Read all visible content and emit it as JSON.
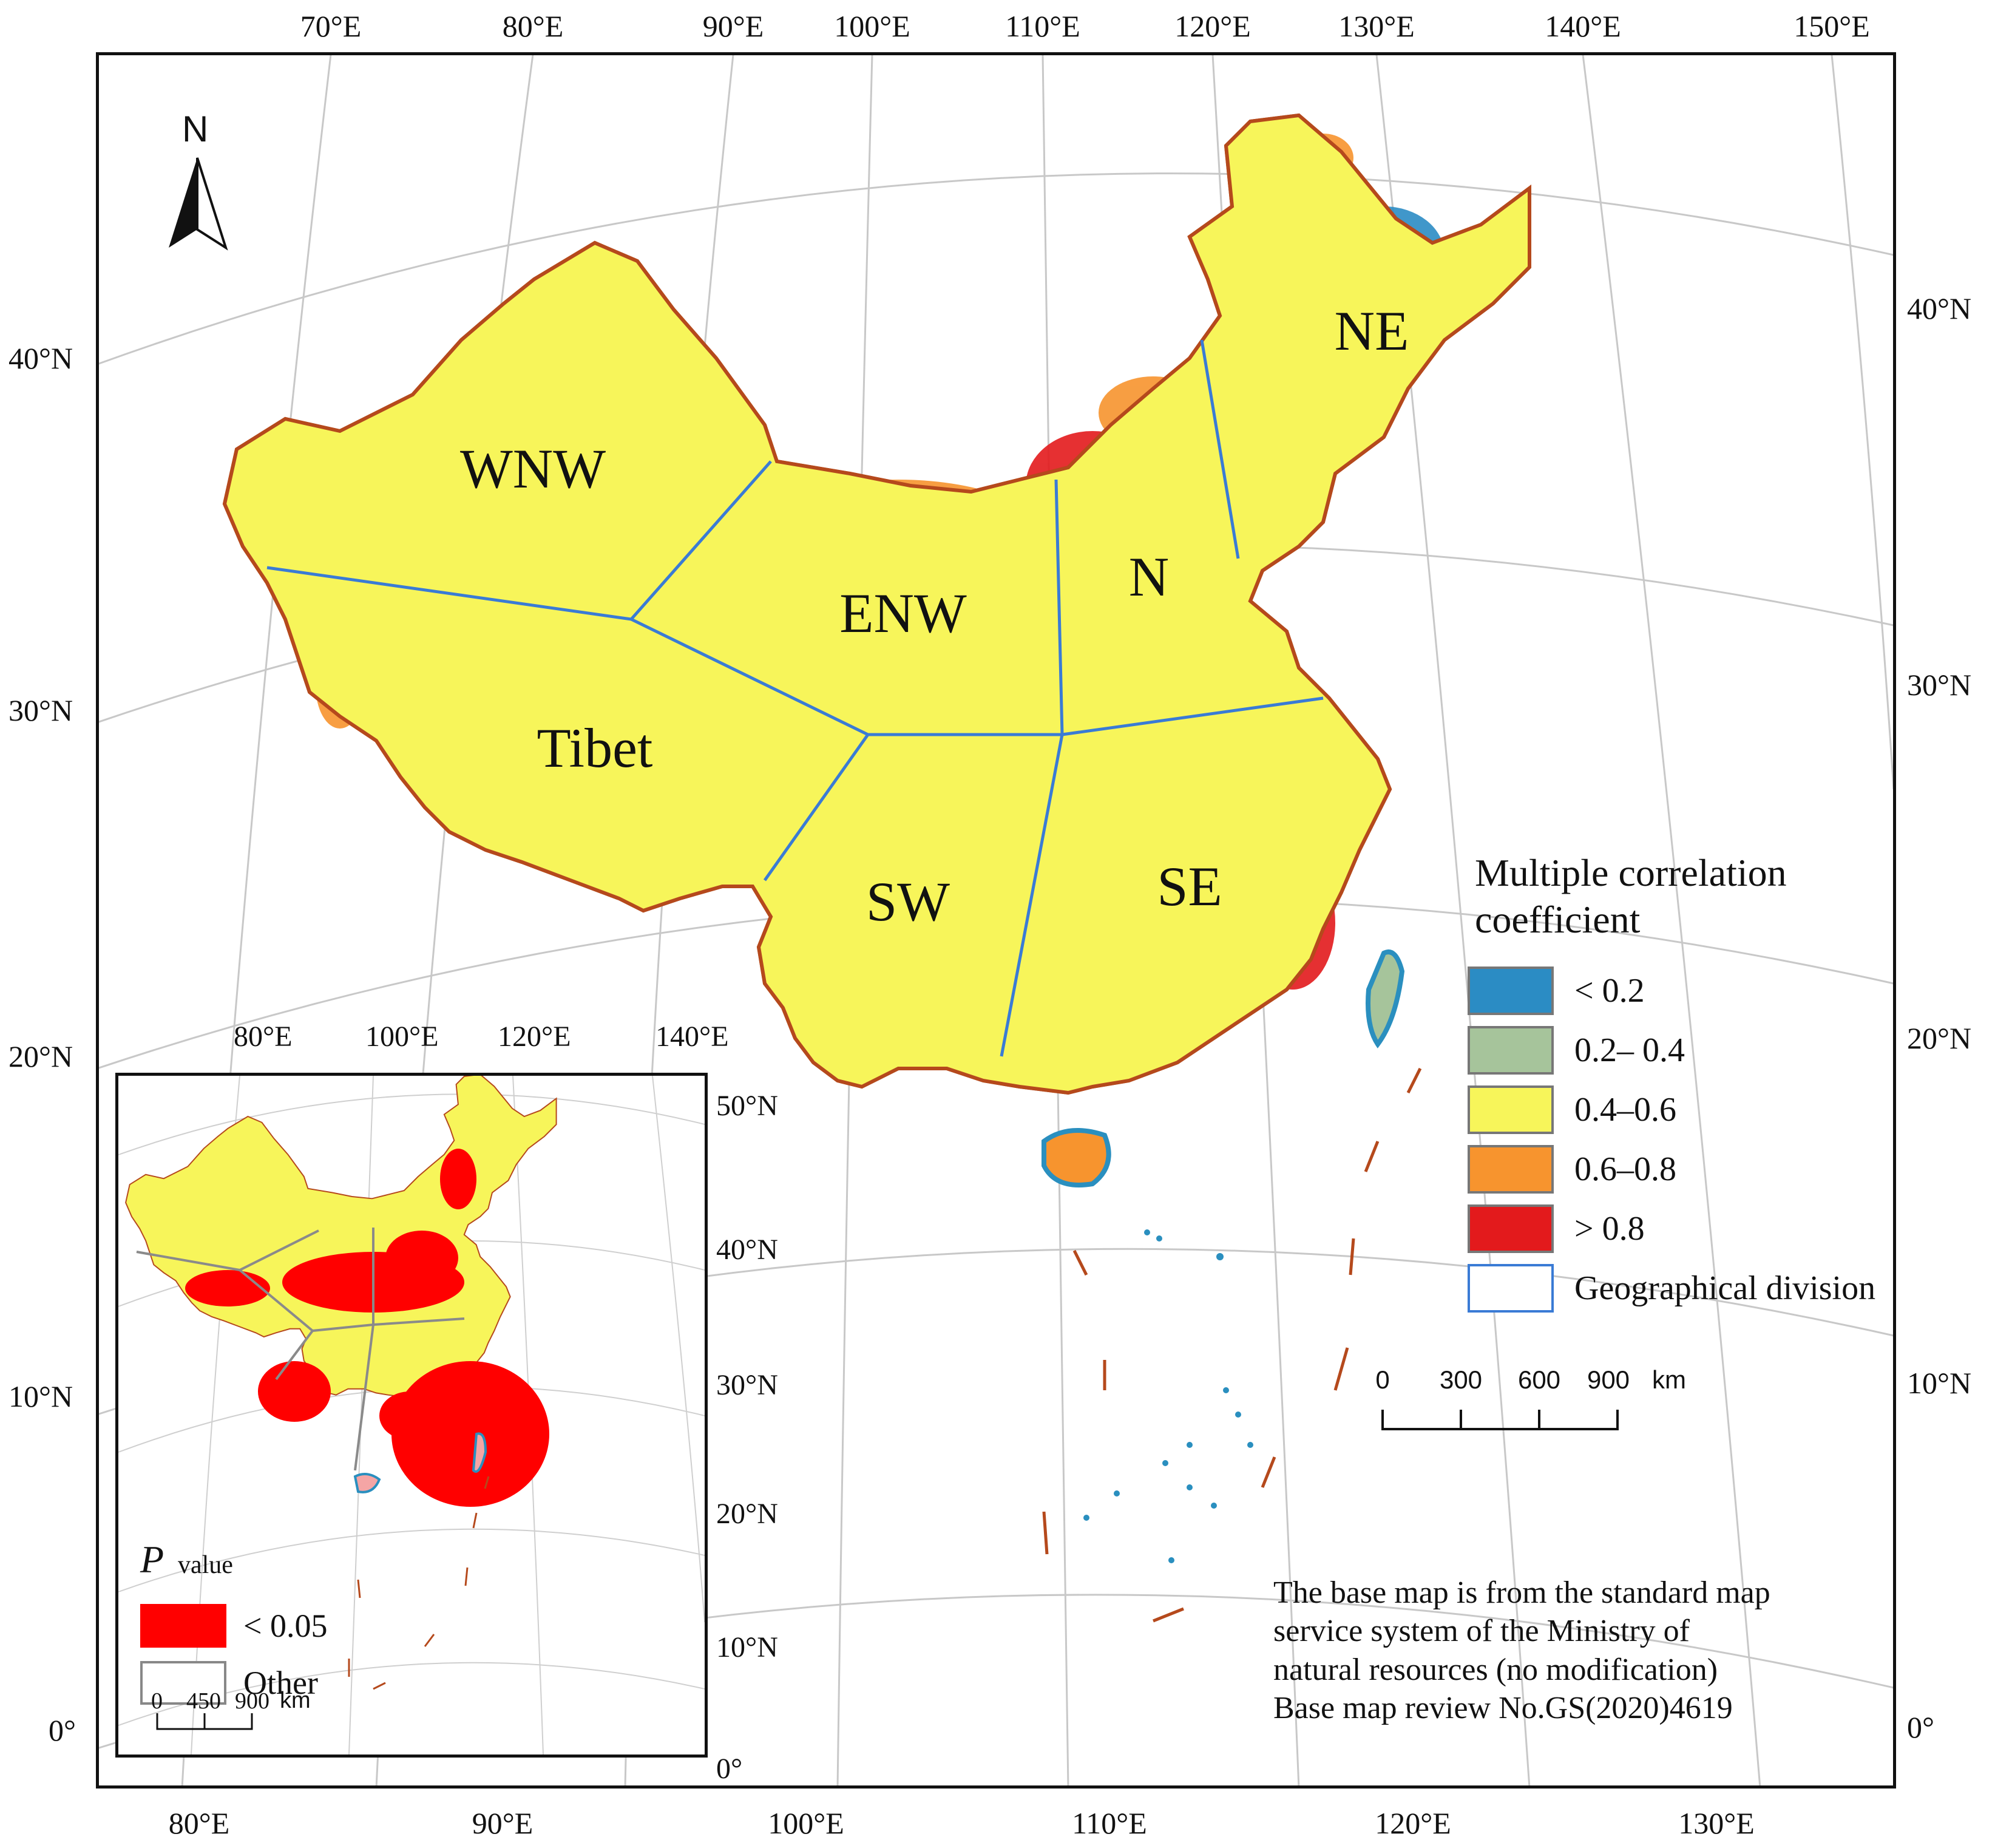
{
  "top_axis": {
    "ticks": [
      "70°E",
      "80°E",
      "90°E",
      "100°E",
      "110°E",
      "120°E",
      "130°E",
      "140°E",
      "150°E"
    ]
  },
  "bottom_axis": {
    "ticks": [
      "80°E",
      "90°E",
      "100°E",
      "110°E",
      "120°E",
      "130°E"
    ]
  },
  "left_axis": {
    "ticks": [
      "40°N",
      "30°N",
      "20°N",
      "10°N",
      "0°"
    ]
  },
  "right_axis": {
    "ticks": [
      "40°N",
      "30°N",
      "20°N",
      "10°N",
      "0°"
    ]
  },
  "north_arrow": {
    "label": "N"
  },
  "regions": [
    "WNW",
    "ENW",
    "N",
    "NE",
    "Tibet",
    "SW",
    "SE"
  ],
  "legend": {
    "title_line1": "Multiple correlation",
    "title_line2": "coefficient",
    "items": [
      {
        "label": "< 0.2",
        "color": "#2b8cc4"
      },
      {
        "label": "0.2– 0.4",
        "color": "#a6c49b"
      },
      {
        "label": "0.4–0.6",
        "color": "#f7f55a"
      },
      {
        "label": "0.6–0.8",
        "color": "#f7942e"
      },
      {
        "label": "> 0.8",
        "color": "#e31a1c"
      }
    ],
    "division_label": "Geographical division",
    "division_color": "#3a7bd5"
  },
  "scale_bar": {
    "labels": [
      "0",
      "300",
      "600",
      "900"
    ],
    "unit": "km"
  },
  "inset": {
    "top_ticks": [
      "80°E",
      "100°E",
      "120°E",
      "140°E"
    ],
    "right_ticks": [
      "50°N",
      "40°N",
      "30°N",
      "20°N",
      "10°N",
      "0°"
    ],
    "pvalue_title": "P",
    "pvalue_sub": "value",
    "items": [
      {
        "label": "< 0.05",
        "color": "#ff0000"
      },
      {
        "label": "Other",
        "color": "#ffffff"
      }
    ],
    "scale_labels": [
      "0",
      "450",
      "900"
    ],
    "scale_unit": "km"
  },
  "note": {
    "line1": "The base map is from the standard map",
    "line2": "service system of the Ministry of",
    "line3": "natural resources (no modification)",
    "line4": "Base map review No.GS(2020)4619"
  },
  "boundary_color": "#b5491c",
  "coast_color": "#2a8fbf"
}
